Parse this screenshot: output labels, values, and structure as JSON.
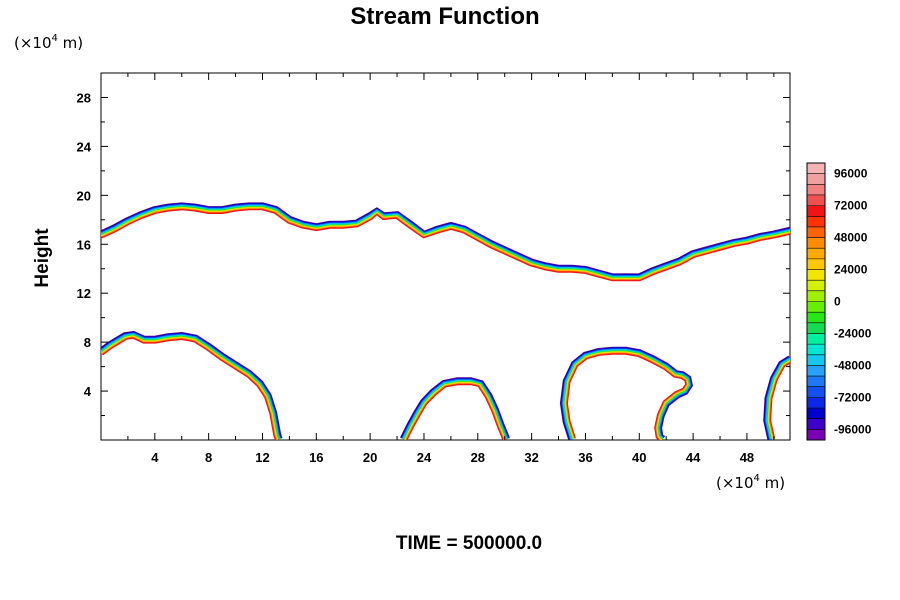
{
  "chart_data": {
    "type": "contour",
    "title": "Stream Function",
    "ylabel": "Height",
    "x_unit": {
      "prefix": "(×10",
      "exp": "4",
      "suffix": " m)"
    },
    "y_unit": {
      "prefix": "(×10",
      "exp": "4",
      "suffix": " m)"
    },
    "xlim": [
      0,
      51.2
    ],
    "ylim": [
      0,
      30
    ],
    "x_ticks": [
      4,
      8,
      12,
      16,
      20,
      24,
      28,
      32,
      36,
      40,
      44,
      48
    ],
    "y_ticks": [
      4,
      8,
      12,
      16,
      20,
      24,
      28
    ],
    "colorbar": {
      "labels": [
        "96000",
        "72000",
        "48000",
        "24000",
        "0",
        "-24000",
        "-48000",
        "-72000",
        "-96000"
      ],
      "min": -104000,
      "max": 104000,
      "step": 8000,
      "colors": [
        "#7a00b4",
        "#3c00c8",
        "#0000cd",
        "#0a28e6",
        "#1450f0",
        "#1e78f5",
        "#28a0fa",
        "#14c8f0",
        "#00e6d2",
        "#00f0a0",
        "#14dc50",
        "#28e614",
        "#64f000",
        "#a0f000",
        "#d2f000",
        "#f0e600",
        "#ffc800",
        "#ffaa00",
        "#ff8c00",
        "#ff6400",
        "#ff3200",
        "#f01414",
        "#f05050",
        "#f08282",
        "#f0a0a0",
        "#f5b4b4"
      ]
    },
    "footer": "TIME = 500000.0",
    "series": [
      {
        "x": [
          0,
          1,
          2,
          3,
          4,
          5,
          6,
          7,
          8,
          9,
          10,
          11,
          12,
          13,
          14,
          15,
          16,
          17,
          18,
          19,
          20,
          20.5,
          21,
          22,
          23,
          24,
          25,
          26,
          27,
          28,
          29,
          30,
          31,
          32,
          33,
          34,
          35,
          36,
          37,
          38,
          39,
          40,
          41,
          42,
          43,
          44,
          45,
          46,
          47,
          48,
          49,
          50,
          51.2
        ],
        "y": [
          16.8,
          17.3,
          17.9,
          18.4,
          18.8,
          19.0,
          19.1,
          19.0,
          18.8,
          18.8,
          19.0,
          19.1,
          19.1,
          18.8,
          18.0,
          17.6,
          17.4,
          17.6,
          17.6,
          17.7,
          18.3,
          18.7,
          18.3,
          18.4,
          17.6,
          16.8,
          17.2,
          17.5,
          17.2,
          16.6,
          16.0,
          15.5,
          15.0,
          14.5,
          14.2,
          14.0,
          14.0,
          13.9,
          13.6,
          13.3,
          13.3,
          13.3,
          13.8,
          14.2,
          14.6,
          15.2,
          15.5,
          15.8,
          16.1,
          16.3,
          16.6,
          16.8,
          17.1
        ]
      },
      {
        "x": [
          0,
          0.6,
          1.2,
          1.8,
          2.4,
          3.2,
          4,
          5,
          6,
          7,
          8,
          9,
          10,
          11,
          11.8,
          12.4,
          12.8,
          13.0,
          13.1,
          13.2
        ],
        "y": [
          7.2,
          7.7,
          8.1,
          8.5,
          8.6,
          8.2,
          8.2,
          8.4,
          8.5,
          8.3,
          7.6,
          6.8,
          6.1,
          5.4,
          4.6,
          3.6,
          2.2,
          1.0,
          0.4,
          0.1
        ]
      },
      {
        "x": [
          22.5,
          23,
          23.5,
          24,
          24.7,
          25.5,
          26.5,
          27.5,
          28.2,
          28.8,
          29.3,
          29.7,
          30.0,
          30.1
        ],
        "y": [
          0.1,
          1.2,
          2.2,
          3.1,
          3.9,
          4.6,
          4.8,
          4.8,
          4.6,
          3.6,
          2.4,
          1.2,
          0.4,
          0.1
        ]
      },
      {
        "x": [
          35.0,
          34.6,
          34.4,
          34.6,
          35.2,
          36.0,
          37.0,
          38.0,
          39.0,
          40.0,
          41.0,
          42.0,
          42.7,
          43.2,
          43.6,
          43.7,
          43.4,
          42.8,
          42.0,
          41.6,
          41.4,
          41.5,
          41.7
        ],
        "y": [
          0.1,
          1.5,
          3.0,
          4.8,
          6.2,
          6.9,
          7.2,
          7.3,
          7.3,
          7.1,
          6.6,
          6.0,
          5.4,
          5.3,
          5.0,
          4.5,
          4.0,
          3.7,
          3.0,
          2.0,
          1.0,
          0.3,
          0.1
        ]
      },
      {
        "x": [
          49.8,
          49.5,
          49.6,
          50.0,
          50.6,
          51.2
        ],
        "y": [
          0.1,
          1.6,
          3.4,
          5.0,
          6.2,
          6.6
        ]
      }
    ]
  }
}
